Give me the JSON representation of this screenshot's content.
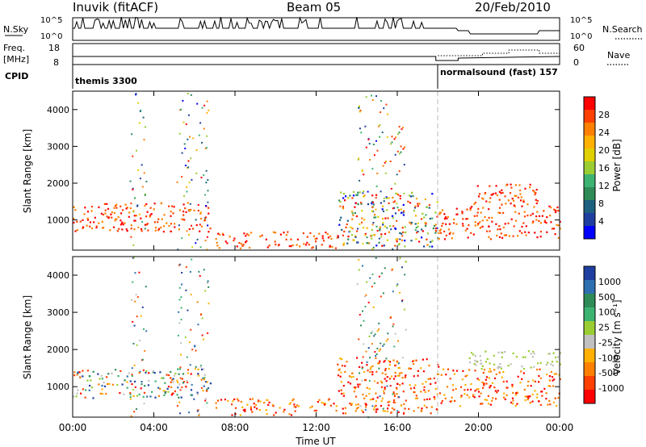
{
  "header": {
    "station": "Inuvik (fitACF)",
    "beam": "Beam 05",
    "date": "20/Feb/2010"
  },
  "top_panels": {
    "nsky_label": "N.Sky",
    "nsky_ticks": [
      "10^5",
      "10^0"
    ],
    "nsearch_label": "N.Search",
    "nsearch_ticks": [
      "10^5",
      "10^0"
    ],
    "freq_label": "Freq.",
    "freq_unit": "[MHz]",
    "freq_ticks": [
      "18",
      "8"
    ],
    "nave_label": "Nave",
    "nave_ticks": [
      "60",
      "0"
    ],
    "cpid_label": "CPID",
    "cpid_programs": [
      {
        "name": "themis 3300",
        "start_hour": 0
      },
      {
        "name": "normalsound (fast) 157",
        "start_hour": 18
      }
    ]
  },
  "chart_data": [
    {
      "type": "heatmap",
      "ylabel": "Slant Range [km]",
      "yticks": [
        "4000",
        "3000",
        "2000",
        "1000"
      ],
      "colorbar_label": "Power [dB]",
      "colorbar_ticks": [
        "28",
        "24",
        "20",
        "16",
        "12",
        "8",
        "4"
      ],
      "colorbar_colors": [
        "#ff0000",
        "#ff4000",
        "#ff8000",
        "#ffb000",
        "#e0d000",
        "#9acd32",
        "#3cb371",
        "#2e8b57",
        "#1e6080",
        "#1e3fa0",
        "#0000ff"
      ],
      "xlim": [
        "00:00",
        "24:00"
      ],
      "ylim": [
        180,
        4500
      ],
      "regions": [
        {
          "t0": 0.0,
          "t1": 6.8,
          "r0": 700,
          "r1": 1500,
          "level": "high"
        },
        {
          "t0": 7.0,
          "t1": 13.0,
          "r0": 250,
          "r1": 700,
          "level": "high"
        },
        {
          "t0": 13.0,
          "t1": 18.0,
          "r0": 300,
          "r1": 1800,
          "level": "mixed"
        },
        {
          "t0": 18.0,
          "t1": 24.0,
          "r0": 500,
          "r1": 1400,
          "level": "high"
        },
        {
          "t0": 19.5,
          "t1": 23.0,
          "r0": 1400,
          "r1": 2000,
          "level": "high"
        }
      ]
    },
    {
      "type": "heatmap",
      "ylabel": "Slant Range [km]",
      "yticks": [
        "4000",
        "3000",
        "2000",
        "1000"
      ],
      "colorbar_label": "Velocity [m s⁻¹]",
      "colorbar_ticks": [
        "1000",
        "500",
        "100",
        "25",
        "-25",
        "-100",
        "-500",
        "-1000"
      ],
      "colorbar_colors": [
        "#1e3fa0",
        "#2e6fb0",
        "#2e8b57",
        "#3cb371",
        "#9acd32",
        "#c0c0c0",
        "#ffb000",
        "#ff8000",
        "#ff4000",
        "#ff0000"
      ],
      "xlim": [
        "00:00",
        "24:00"
      ],
      "ylim": [
        180,
        4500
      ],
      "regions": [
        {
          "t0": 0.0,
          "t1": 6.8,
          "r0": 700,
          "r1": 1500,
          "level": "mixed"
        },
        {
          "t0": 7.0,
          "t1": 13.0,
          "r0": 250,
          "r1": 700,
          "level": "negative"
        },
        {
          "t0": 13.0,
          "t1": 18.0,
          "r0": 300,
          "r1": 1800,
          "level": "negative"
        },
        {
          "t0": 18.0,
          "t1": 24.0,
          "r0": 500,
          "r1": 1500,
          "level": "negative"
        },
        {
          "t0": 19.5,
          "t1": 24.0,
          "r0": 1500,
          "r1": 2000,
          "level": "low"
        }
      ]
    }
  ],
  "xaxis": {
    "ticks": [
      "00:00",
      "04:00",
      "08:00",
      "12:00",
      "16:00",
      "20:00",
      "00:00"
    ],
    "label": "Time UT"
  }
}
